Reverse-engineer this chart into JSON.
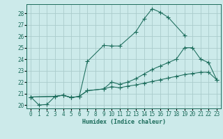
{
  "xlabel": "Humidex (Indice chaleur)",
  "bg_color": "#cceaea",
  "grid_color": "#aacccc",
  "line_color": "#1a6b5a",
  "xlim": [
    -0.5,
    23.5
  ],
  "ylim": [
    19.7,
    28.8
  ],
  "xticks": [
    0,
    1,
    2,
    3,
    4,
    5,
    6,
    7,
    8,
    9,
    10,
    11,
    12,
    13,
    14,
    15,
    16,
    17,
    18,
    19,
    20,
    21,
    22,
    23
  ],
  "yticks": [
    20,
    21,
    22,
    23,
    24,
    25,
    26,
    27,
    28
  ],
  "line1_x": [
    0,
    1,
    2,
    3,
    4,
    5,
    6,
    7,
    9,
    10,
    11,
    13,
    14,
    15,
    16,
    17,
    19
  ],
  "line1_y": [
    20.7,
    20.0,
    20.05,
    20.75,
    20.85,
    20.65,
    20.75,
    23.8,
    25.2,
    25.15,
    25.15,
    26.4,
    27.5,
    28.4,
    28.1,
    27.65,
    26.1
  ],
  "line2_x": [
    0,
    3,
    4,
    5,
    6,
    7,
    9,
    10,
    11,
    12,
    13,
    14,
    15,
    16,
    17,
    18,
    19,
    20,
    21,
    22,
    23
  ],
  "line2_y": [
    20.7,
    20.75,
    20.85,
    20.65,
    20.75,
    21.25,
    21.4,
    22.0,
    21.8,
    22.0,
    22.3,
    22.7,
    23.1,
    23.4,
    23.7,
    24.0,
    25.0,
    25.0,
    24.0,
    23.7,
    22.2
  ],
  "line3_x": [
    0,
    3,
    4,
    5,
    6,
    7,
    9,
    10,
    11,
    12,
    13,
    14,
    15,
    16,
    17,
    18,
    19,
    20,
    21,
    22,
    23
  ],
  "line3_y": [
    20.7,
    20.75,
    20.85,
    20.65,
    20.75,
    21.25,
    21.4,
    21.6,
    21.5,
    21.65,
    21.75,
    21.9,
    22.05,
    22.2,
    22.35,
    22.5,
    22.65,
    22.75,
    22.85,
    22.85,
    22.2
  ]
}
